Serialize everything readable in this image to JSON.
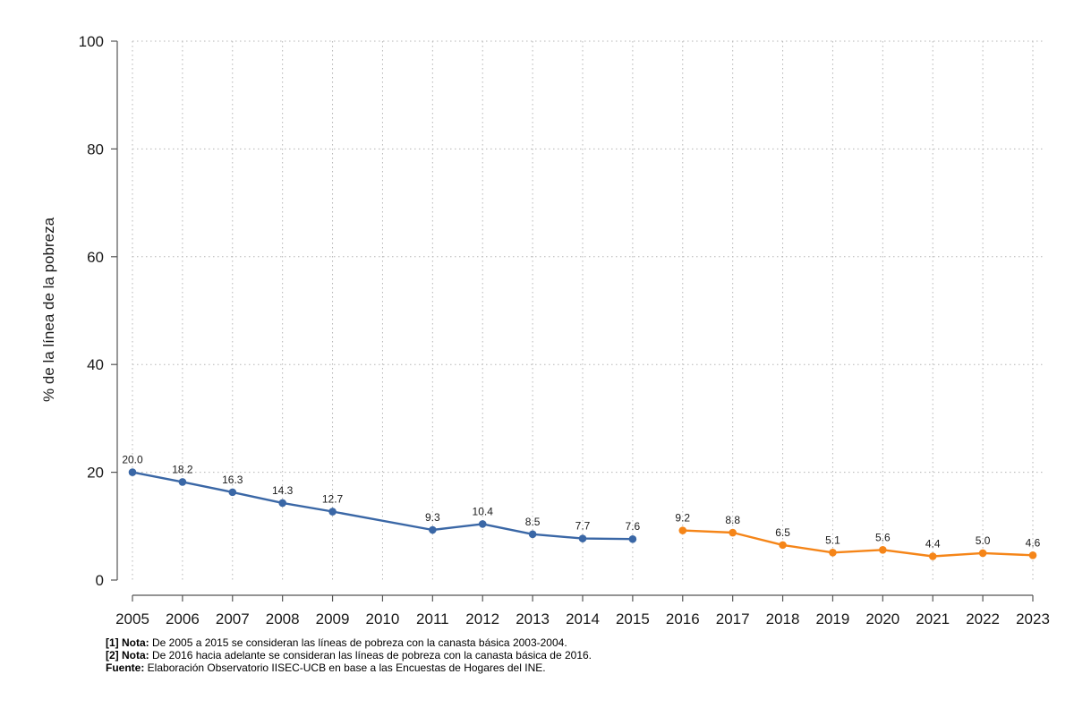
{
  "chart_data": {
    "type": "line",
    "title": "",
    "xlabel": "",
    "ylabel": "% de la línea de la pobreza",
    "ylim": [
      0,
      100
    ],
    "yticks": [
      "0",
      "20",
      "40",
      "60",
      "80",
      "100"
    ],
    "x": [
      "2005",
      "2006",
      "2007",
      "2008",
      "2009",
      "2010",
      "2011",
      "2012",
      "2013",
      "2014",
      "2015",
      "2016",
      "2017",
      "2018",
      "2019",
      "2020",
      "2021",
      "2022",
      "2023"
    ],
    "grid": true,
    "series": [
      {
        "name": "Canasta básica 2003-2004",
        "color": "#3a67a6",
        "x": [
          "2005",
          "2006",
          "2007",
          "2008",
          "2009",
          "2011",
          "2012",
          "2013",
          "2014",
          "2015"
        ],
        "values": [
          20.0,
          18.2,
          16.3,
          14.3,
          12.7,
          9.3,
          10.4,
          8.5,
          7.7,
          7.6
        ],
        "labels": [
          "20.0",
          "18.2",
          "16.3",
          "14.3",
          "12.7",
          "9.3",
          "10.4",
          "8.5",
          "7.7",
          "7.6"
        ]
      },
      {
        "name": "Canasta básica 2016",
        "color": "#f58518",
        "x": [
          "2016",
          "2017",
          "2018",
          "2019",
          "2020",
          "2021",
          "2022",
          "2023"
        ],
        "values": [
          9.2,
          8.8,
          6.5,
          5.1,
          5.6,
          4.4,
          5.0,
          4.6
        ],
        "labels": [
          "9.2",
          "8.8",
          "6.5",
          "5.1",
          "5.6",
          "4.4",
          "5.0",
          "4.6"
        ]
      }
    ]
  },
  "notes": [
    {
      "bold": "[1] Nota:",
      "text": " De 2005 a 2015 se consideran las líneas de pobreza con la canasta básica 2003-2004."
    },
    {
      "bold": "[2] Nota:",
      "text": " De 2016 hacia adelante se consideran las líneas de pobreza con la canasta básica de 2016."
    },
    {
      "bold": "Fuente:",
      "text": " Elaboración Observatorio IISEC-UCB en base a las Encuestas de Hogares del INE."
    }
  ]
}
